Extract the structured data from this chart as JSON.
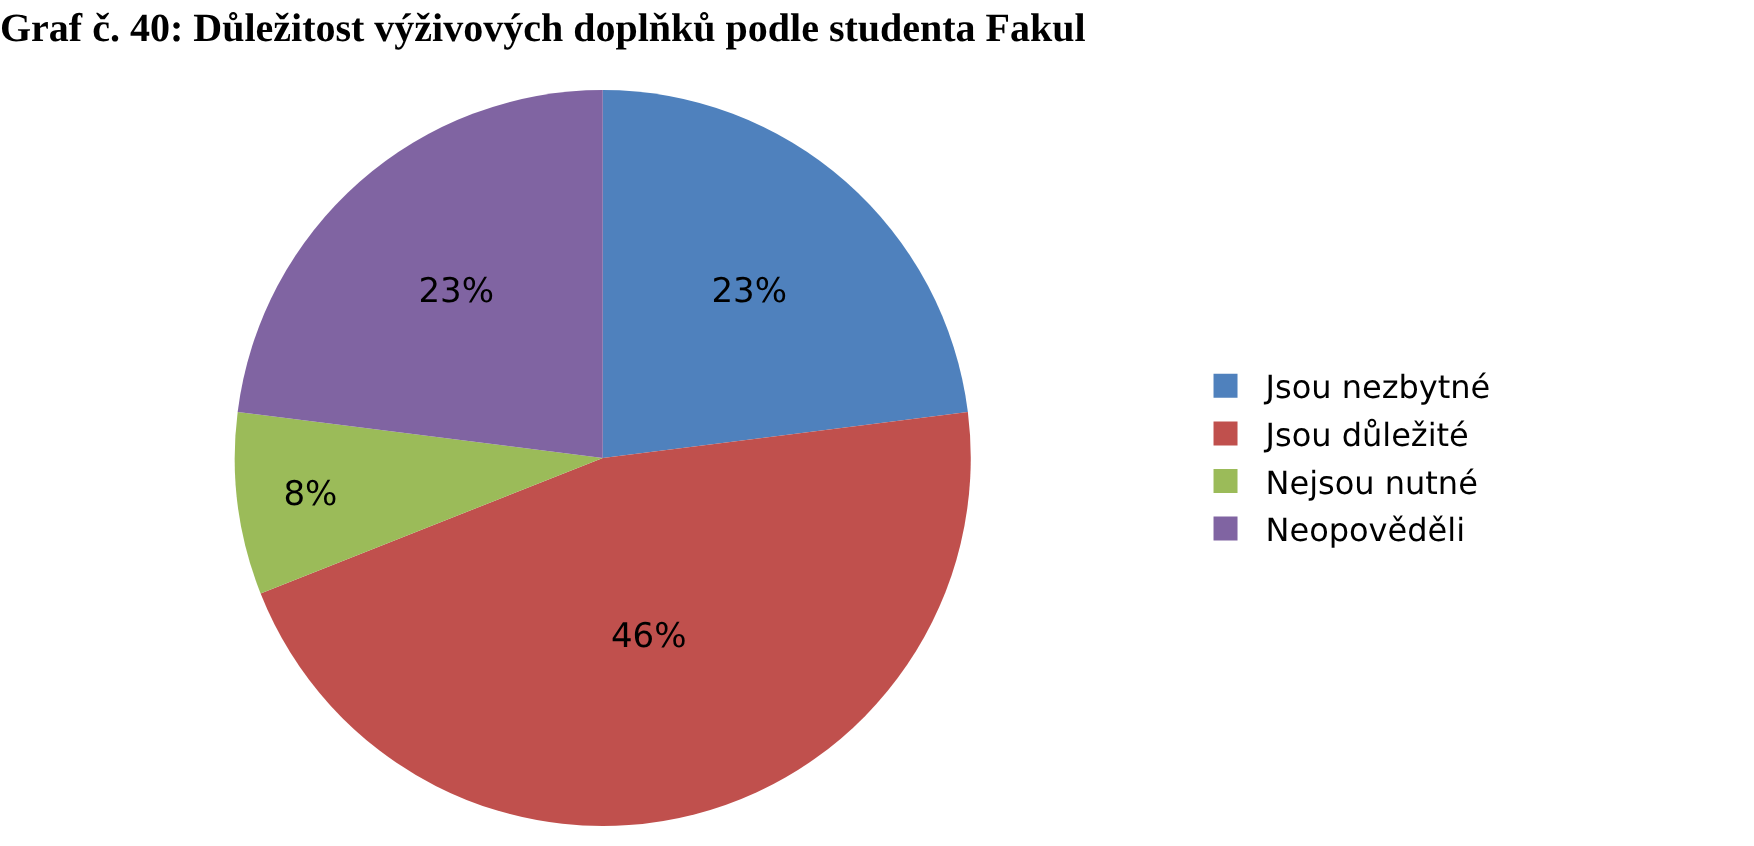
{
  "chart_data": {
    "type": "pie",
    "title": "Graf č. 40: Důležitost výživových doplňků podle studenta Fakul",
    "categories": [
      "Jsou nezbytné",
      "Jsou důležité",
      "Nejsou nutné",
      "Neopověděli"
    ],
    "values": [
      23,
      46,
      8,
      23
    ],
    "colors": [
      "#4f81bd",
      "#c0504d",
      "#9bbb59",
      "#8064a2"
    ],
    "value_labels": [
      "23%",
      "46%",
      "8%",
      "23%"
    ],
    "legend": "right"
  }
}
